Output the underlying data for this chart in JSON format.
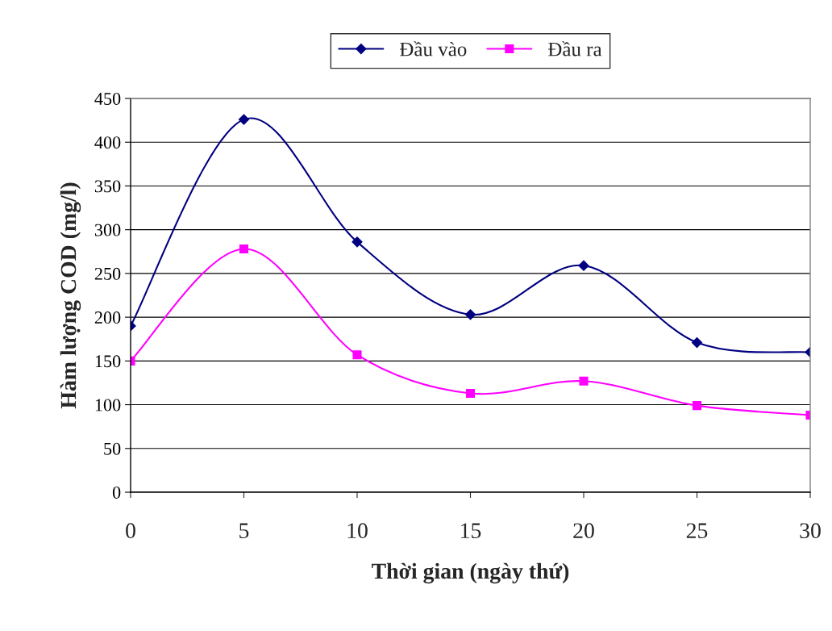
{
  "chart_data": {
    "type": "line",
    "xlabel": "Thời gian (ngày thứ)",
    "ylabel": "Hàm lượng COD (mg/l)",
    "x": [
      0,
      5,
      10,
      15,
      20,
      25,
      30
    ],
    "series": [
      {
        "name": "Đầu vào",
        "color": "#000080",
        "marker": "diamond",
        "values": [
          190,
          426,
          286,
          203,
          259,
          171,
          160
        ]
      },
      {
        "name": "Đầu ra",
        "color": "#ff00ff",
        "marker": "square",
        "values": [
          150,
          278,
          157,
          113,
          127,
          99,
          88
        ]
      }
    ],
    "xlim": [
      0,
      30
    ],
    "xticks": [
      0,
      5,
      10,
      15,
      20,
      25,
      30
    ],
    "ylim": [
      0,
      450
    ],
    "yticks": [
      0,
      50,
      100,
      150,
      200,
      250,
      300,
      350,
      400,
      450
    ],
    "grid": "y",
    "legend": "top",
    "line_style": "solid"
  }
}
